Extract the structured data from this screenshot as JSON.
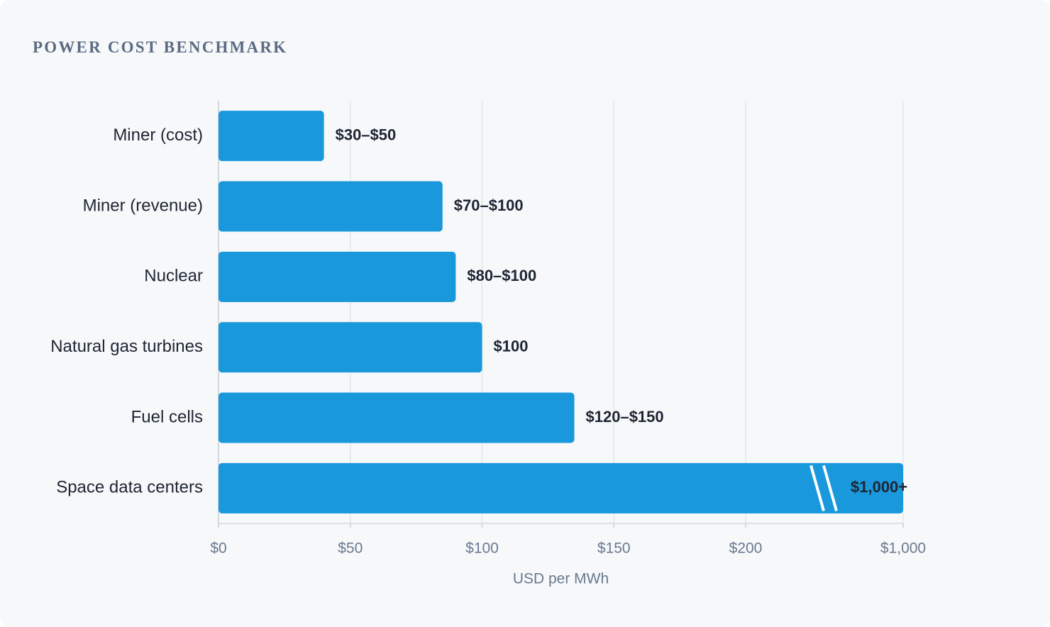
{
  "chart_data": {
    "type": "bar",
    "orientation": "horizontal",
    "title": "POWER COST BENCHMARK",
    "x_label": "USD per MWh",
    "categories": [
      "Miner (cost)",
      "Miner (revenue)",
      "Nuclear",
      "Natural gas turbines",
      "Fuel cells",
      "Space data centers"
    ],
    "values": [
      40,
      85,
      90,
      100,
      135,
      1000
    ],
    "value_labels": [
      "$30–$50",
      "$70–$100",
      "$80–$100",
      "$100",
      "$120–$150",
      "$1,000+"
    ],
    "color": "#1a98dc",
    "xlim": [
      0,
      1000
    ],
    "axis_break_after": 200,
    "xticks": [
      {
        "value": 0,
        "label": "$0"
      },
      {
        "value": 50,
        "label": "$50"
      },
      {
        "value": 100,
        "label": "$100"
      },
      {
        "value": 150,
        "label": "$150"
      },
      {
        "value": 200,
        "label": "$200"
      },
      {
        "value": 1000,
        "label": "$1,000"
      }
    ],
    "grid": true
  }
}
